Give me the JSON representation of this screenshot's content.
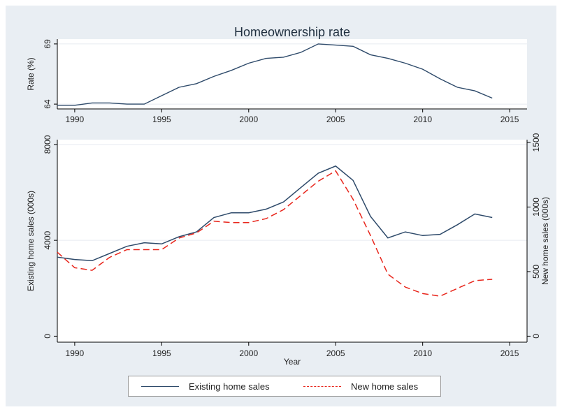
{
  "chart_data": [
    {
      "type": "line",
      "title": "Homeownership rate",
      "ylabel": "Rate (%)",
      "xlabel": "",
      "x_ticks": [
        1990,
        1995,
        2000,
        2005,
        2010,
        2015
      ],
      "y_ticks": [
        64,
        69
      ],
      "xlim": [
        1989,
        2016
      ],
      "ylim": [
        63.6,
        69.4
      ],
      "series": [
        {
          "color": "#2e4a6a",
          "x": [
            1989,
            1990,
            1991,
            1992,
            1993,
            1994,
            1995,
            1996,
            1997,
            1998,
            1999,
            2000,
            2001,
            2002,
            2003,
            2004,
            2005,
            2006,
            2007,
            2008,
            2009,
            2010,
            2011,
            2012,
            2013,
            2014
          ],
          "values": [
            63.9,
            63.9,
            64.1,
            64.1,
            64.0,
            64.0,
            64.7,
            65.4,
            65.7,
            66.3,
            66.8,
            67.4,
            67.8,
            67.9,
            68.3,
            69.0,
            68.9,
            68.8,
            68.1,
            67.8,
            67.4,
            66.9,
            66.1,
            65.4,
            65.1,
            64.5
          ]
        }
      ]
    },
    {
      "type": "line",
      "xlabel": "Year",
      "ylabel": "Existing home sales (000s)",
      "y2label": "New home sales (000s)",
      "x_ticks": [
        1990,
        1995,
        2000,
        2005,
        2010,
        2015
      ],
      "y_ticks": [
        0,
        4000,
        8000
      ],
      "y2_ticks": [
        0,
        500,
        1000,
        1500
      ],
      "xlim": [
        1989,
        2016
      ],
      "ylim": [
        -250,
        8200
      ],
      "y2lim": [
        0,
        1500
      ],
      "legend_position": "bottom",
      "series": [
        {
          "name": "Existing home sales",
          "axis": "left",
          "color": "#2e4a6a",
          "dash": "solid",
          "x": [
            1989,
            1990,
            1991,
            1992,
            1993,
            1994,
            1995,
            1996,
            1997,
            1998,
            1999,
            2000,
            2001,
            2002,
            2003,
            2004,
            2005,
            2006,
            2007,
            2008,
            2009,
            2010,
            2011,
            2012,
            2013,
            2014
          ],
          "values": [
            3300,
            3200,
            3150,
            3450,
            3750,
            3900,
            3850,
            4150,
            4350,
            4950,
            5150,
            5150,
            5300,
            5600,
            6200,
            6800,
            7100,
            6500,
            5000,
            4100,
            4350,
            4200,
            4250,
            4650,
            5100,
            4950
          ]
        },
        {
          "name": "New home sales",
          "axis": "right",
          "color": "#e8261c",
          "dash": "dashed",
          "x": [
            1989,
            1990,
            1991,
            1992,
            1993,
            1994,
            1995,
            1996,
            1997,
            1998,
            1999,
            2000,
            2001,
            2002,
            2003,
            2004,
            2005,
            2006,
            2007,
            2008,
            2009,
            2010,
            2011,
            2012,
            2013,
            2014
          ],
          "values": [
            650,
            530,
            510,
            610,
            670,
            670,
            670,
            760,
            800,
            890,
            880,
            880,
            910,
            980,
            1090,
            1200,
            1280,
            1060,
            780,
            480,
            380,
            330,
            310,
            370,
            430,
            440
          ]
        }
      ]
    }
  ]
}
